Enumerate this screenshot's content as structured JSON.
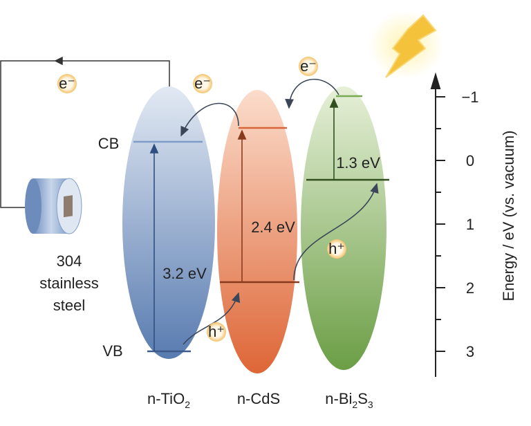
{
  "electrode": {
    "label": [
      "304",
      "stainless",
      "steel"
    ]
  },
  "carriers": {
    "electrons": [
      "e⁻",
      "e⁻",
      "e⁻"
    ],
    "holes": [
      "h⁺",
      "h⁺"
    ]
  },
  "levels": {
    "cb": "CB",
    "vb": "VB"
  },
  "materials": [
    {
      "label": [
        "n-TiO",
        "2"
      ],
      "gap": "3.2 eV"
    },
    {
      "label": [
        "n-CdS"
      ],
      "gap": "2.4 eV"
    },
    {
      "label": [
        "n-Bi",
        "2",
        "S",
        "3"
      ],
      "gap": "1.3 eV"
    }
  ],
  "axis": {
    "title": "Energy / eV (vs. vacuum)",
    "ticks": [
      "−1",
      "0",
      "1",
      "2",
      "3"
    ]
  }
}
